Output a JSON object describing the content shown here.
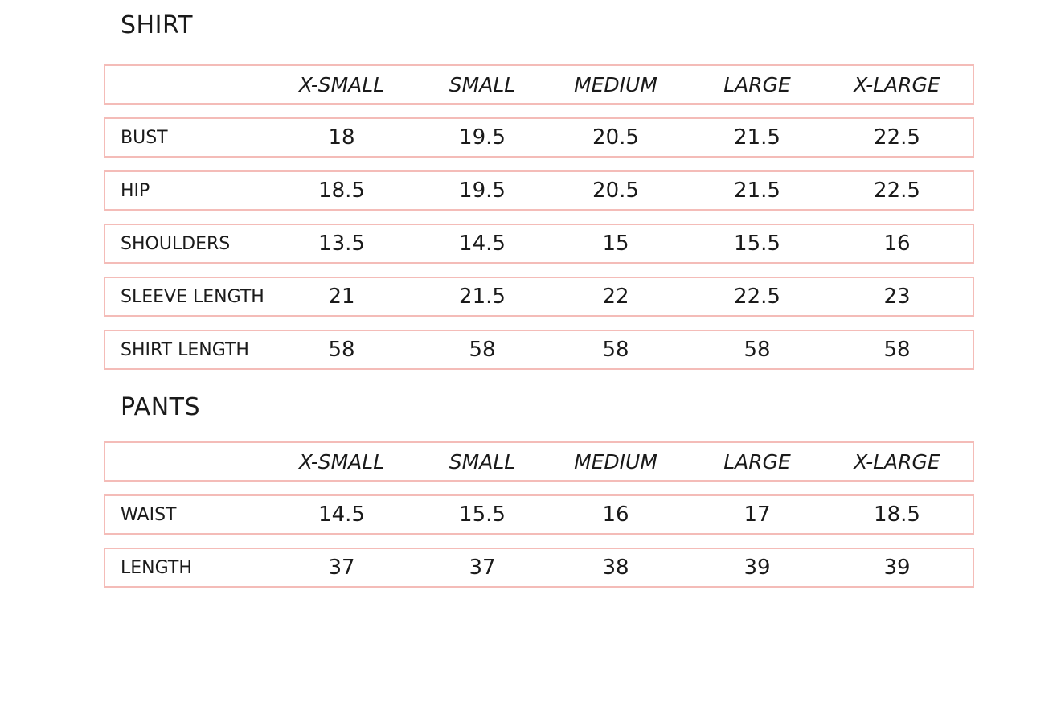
{
  "border_color": "#f4bcb8",
  "shirt": {
    "title": "SHIRT",
    "headers": [
      "",
      "X-SMALL",
      "SMALL",
      "MEDIUM",
      "LARGE",
      "X-LARGE"
    ],
    "rows": [
      [
        "BUST",
        "18",
        "19.5",
        "20.5",
        "21.5",
        "22.5"
      ],
      [
        "HIP",
        "18.5",
        "19.5",
        "20.5",
        "21.5",
        "22.5"
      ],
      [
        "SHOULDERS",
        "13.5",
        "14.5",
        "15",
        "15.5",
        "16"
      ],
      [
        "SLEEVE LENGTH",
        "21",
        "21.5",
        "22",
        "22.5",
        "23"
      ],
      [
        "SHIRT LENGTH",
        "58",
        "58",
        "58",
        "58",
        "58"
      ]
    ]
  },
  "pants": {
    "title": "PANTS",
    "headers": [
      "",
      "X-SMALL",
      "SMALL",
      "MEDIUM",
      "LARGE",
      "X-LARGE"
    ],
    "rows": [
      [
        "WAIST",
        "14.5",
        "15.5",
        "16",
        "17",
        "18.5"
      ],
      [
        "LENGTH",
        "37",
        "37",
        "38",
        "39",
        "39"
      ]
    ]
  }
}
